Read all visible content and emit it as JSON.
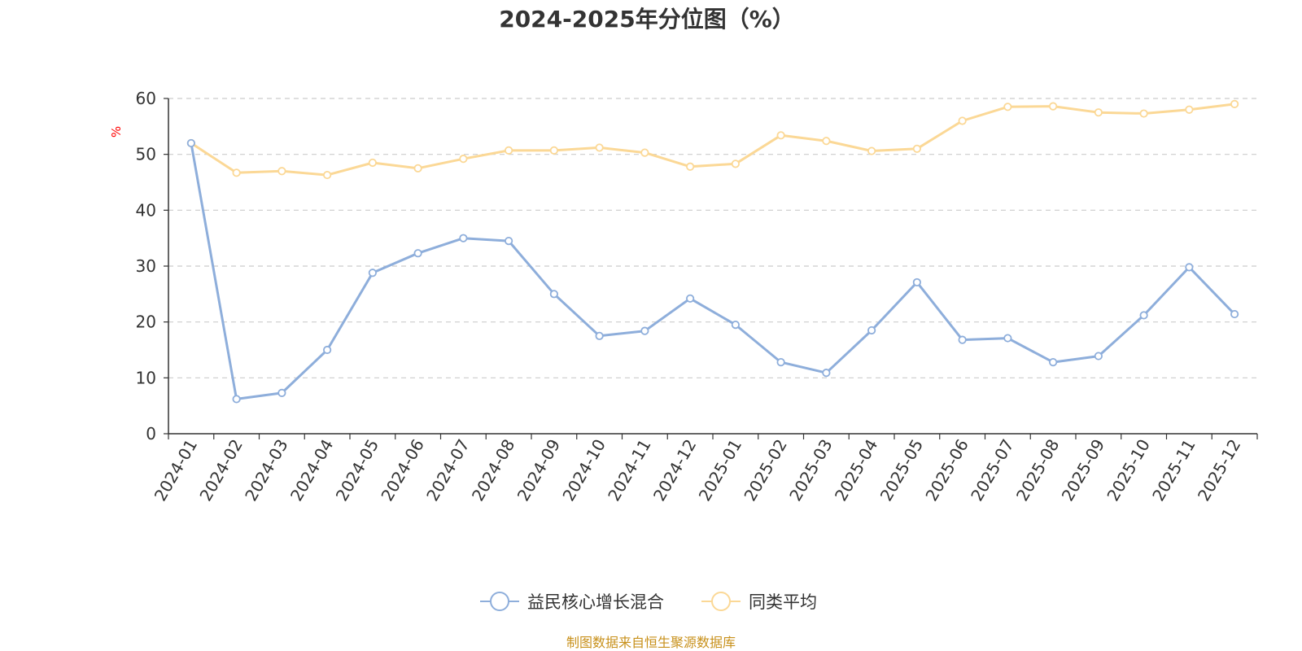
{
  "chart_data": {
    "type": "line",
    "title": "2024-2025年分位图（%）",
    "ylabel": "%",
    "ylim": [
      0,
      60
    ],
    "yticks": [
      0,
      10,
      20,
      30,
      40,
      50,
      60
    ],
    "grid": true,
    "legend_placement": "bottom-center",
    "categories": [
      "2024-01",
      "2024-02",
      "2024-03",
      "2024-04",
      "2024-05",
      "2024-06",
      "2024-07",
      "2024-08",
      "2024-09",
      "2024-10",
      "2024-11",
      "2024-12",
      "2025-01",
      "2025-02",
      "2025-03",
      "2025-04",
      "2025-05",
      "2025-06",
      "2025-07",
      "2025-08",
      "2025-09",
      "2025-10",
      "2025-11",
      "2025-12"
    ],
    "series": [
      {
        "name": "益民核心增长混合",
        "color": "#8eaedb",
        "values": [
          52,
          6.2,
          7.3,
          15,
          28.8,
          32.3,
          35,
          34.5,
          25,
          17.5,
          18.4,
          24.2,
          19.5,
          12.8,
          10.9,
          18.5,
          27.1,
          16.8,
          17.1,
          12.8,
          13.9,
          21.2,
          29.8,
          21.4
        ]
      },
      {
        "name": "同类平均",
        "color": "#fbd896",
        "values": [
          52,
          46.7,
          47,
          46.3,
          48.5,
          47.5,
          49.2,
          50.7,
          50.7,
          51.2,
          50.3,
          47.8,
          48.3,
          53.4,
          52.4,
          50.6,
          51,
          56,
          58.5,
          58.6,
          57.5,
          57.3,
          58,
          59
        ]
      }
    ],
    "source": "制图数据来自恒生聚源数据库",
    "colors": {
      "text": "#333333",
      "axis": "#333333",
      "grid": "#cccccc",
      "unit": "#ff0000",
      "source": "#c8911c"
    }
  }
}
